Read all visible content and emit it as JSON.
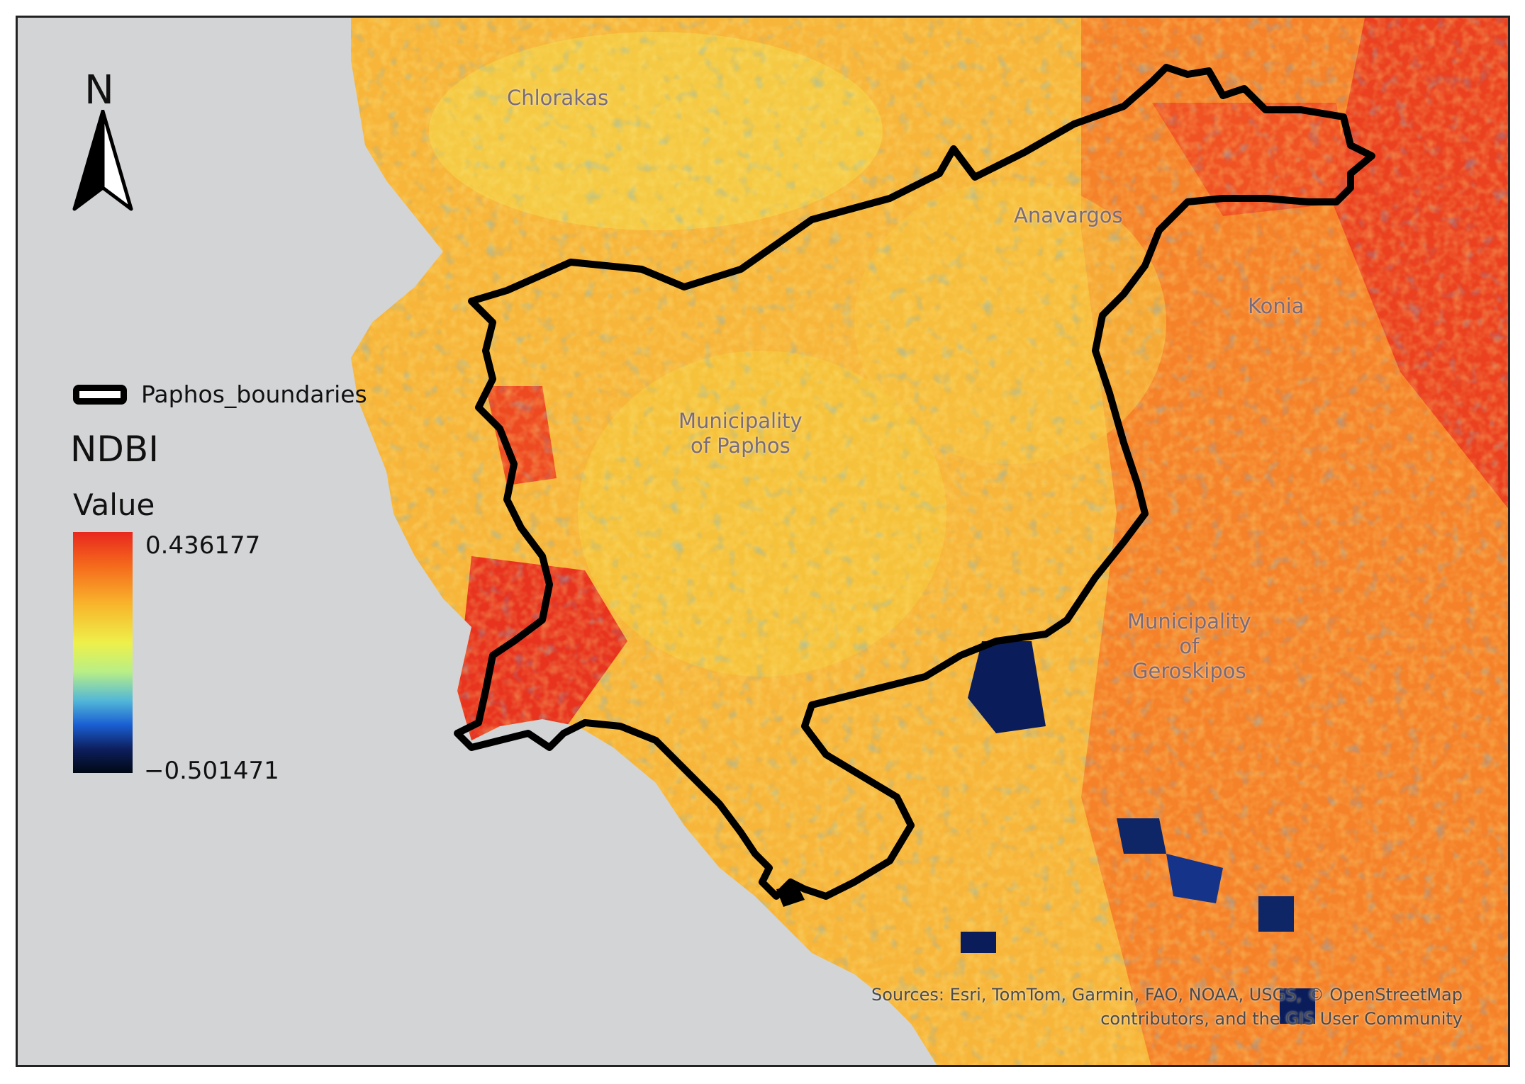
{
  "map": {
    "north_label": "N",
    "places": [
      {
        "name": "Chlorakas"
      },
      {
        "name": "Anavargos"
      },
      {
        "name": "Konia"
      },
      {
        "name": "Municipality\nof Paphos"
      },
      {
        "name": "Municipality\nof\nGeroskipos"
      }
    ],
    "attribution_line1": "Sources: Esri, TomTom, Garmin, FAO, NOAA, USGS, © OpenStreetMap",
    "attribution_line2": "contributors, and the GIS User Community",
    "colors": {
      "sea": "#d3d4d6",
      "boundary": "#000000",
      "high": "#e8271e",
      "mid": "#f8b52c",
      "low_mid": "#eef04a",
      "low": "#1a5fd3",
      "lowest": "#000814"
    }
  },
  "legend": {
    "layer_label": "Paphos_boundaries",
    "title": "NDBI",
    "subtitle": "Value",
    "max_label": "0.436177",
    "min_label": "−0.501471"
  }
}
